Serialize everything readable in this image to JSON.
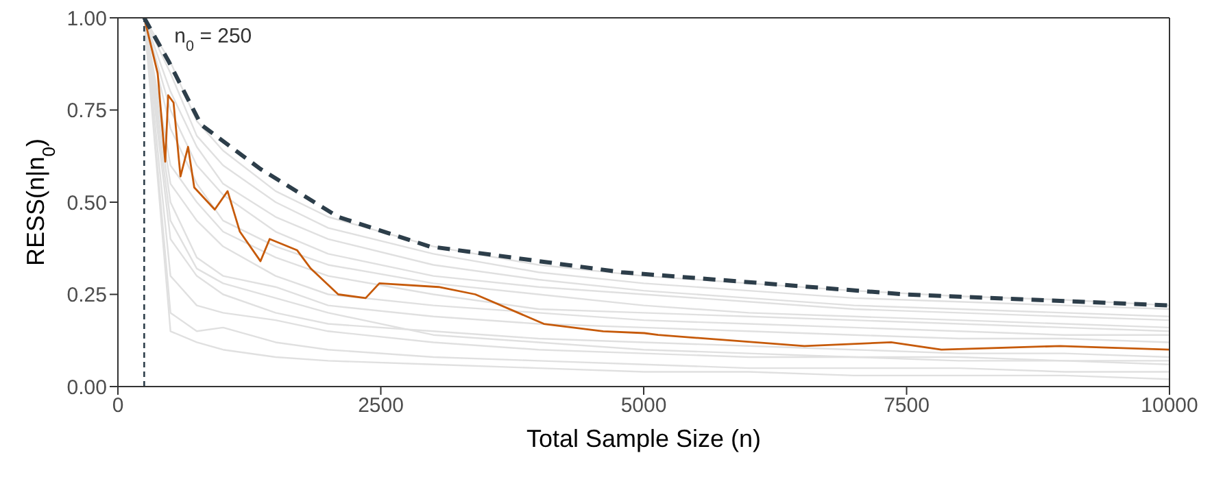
{
  "chart_data": {
    "type": "line",
    "xlabel": "Total Sample Size (n)",
    "ylabel": "RESS(n|n$_{0}$)",
    "xlim": [
      0,
      10000
    ],
    "xticks": [
      0,
      2500,
      5000,
      7500,
      10000
    ],
    "ylim": [
      0,
      1
    ],
    "yticks": [
      {
        "value": 0,
        "label": "0.00"
      },
      {
        "value": 0.25,
        "label": "0.25"
      },
      {
        "value": 0.5,
        "label": "0.50"
      },
      {
        "value": 0.75,
        "label": "0.75"
      },
      {
        "value": 1,
        "label": "1.00"
      }
    ],
    "marker": "none",
    "x": [
      250,
      500,
      750,
      1000,
      1500,
      2000,
      3000,
      4000,
      5000,
      6000,
      7000,
      8000,
      9000,
      10000
    ],
    "series": [
      {
        "color": "#e0e0e0",
        "values": [
          1,
          0.88,
          0.72,
          0.64,
          0.53,
          0.46,
          0.38,
          0.33,
          0.3,
          0.28,
          0.26,
          0.245,
          0.235,
          0.22
        ]
      },
      {
        "color": "#e0e0e0",
        "values": [
          1,
          0.85,
          0.68,
          0.6,
          0.5,
          0.43,
          0.36,
          0.31,
          0.28,
          0.26,
          0.24,
          0.23,
          0.22,
          0.21
        ]
      },
      {
        "color": "#e0e0e0",
        "values": [
          1,
          0.8,
          0.65,
          0.55,
          0.46,
          0.4,
          0.33,
          0.29,
          0.26,
          0.24,
          0.22,
          0.21,
          0.2,
          0.19
        ]
      },
      {
        "color": "#e0e0e0",
        "values": [
          1,
          0.75,
          0.6,
          0.52,
          0.42,
          0.36,
          0.3,
          0.27,
          0.25,
          0.23,
          0.21,
          0.2,
          0.19,
          0.18
        ]
      },
      {
        "color": "#e0e0e0",
        "values": [
          1,
          0.7,
          0.55,
          0.45,
          0.38,
          0.33,
          0.28,
          0.25,
          0.22,
          0.2,
          0.19,
          0.18,
          0.17,
          0.16
        ]
      },
      {
        "color": "#e0e0e0",
        "values": [
          1,
          0.6,
          0.5,
          0.42,
          0.35,
          0.3,
          0.25,
          0.21,
          0.2,
          0.19,
          0.18,
          0.17,
          0.16,
          0.15
        ]
      },
      {
        "color": "#e0e0e0",
        "values": [
          1,
          0.55,
          0.45,
          0.38,
          0.3,
          0.25,
          0.22,
          0.2,
          0.18,
          0.17,
          0.16,
          0.15,
          0.14,
          0.14
        ]
      },
      {
        "color": "#e0e0e0",
        "values": [
          1,
          0.5,
          0.35,
          0.3,
          0.27,
          0.22,
          0.19,
          0.17,
          0.16,
          0.15,
          0.14,
          0.13,
          0.13,
          0.12
        ]
      },
      {
        "color": "#e0e0e0",
        "values": [
          1,
          0.45,
          0.32,
          0.28,
          0.24,
          0.2,
          0.14,
          0.12,
          0.1,
          0.09,
          0.08,
          0.08,
          0.07,
          0.07
        ]
      },
      {
        "color": "#e0e0e0",
        "values": [
          1,
          0.4,
          0.3,
          0.25,
          0.2,
          0.17,
          0.15,
          0.13,
          0.12,
          0.11,
          0.1,
          0.09,
          0.09,
          0.08
        ]
      },
      {
        "color": "#e0e0e0",
        "values": [
          1,
          0.3,
          0.22,
          0.2,
          0.18,
          0.15,
          0.12,
          0.1,
          0.09,
          0.08,
          0.08,
          0.07,
          0.07,
          0.06
        ]
      },
      {
        "color": "#e0e0e0",
        "values": [
          1,
          0.2,
          0.15,
          0.16,
          0.12,
          0.1,
          0.08,
          0.07,
          0.06,
          0.05,
          0.05,
          0.05,
          0.04,
          0.04
        ]
      },
      {
        "color": "#e0e0e0",
        "values": [
          1,
          0.15,
          0.12,
          0.1,
          0.08,
          0.07,
          0.06,
          0.05,
          0.04,
          0.04,
          0.03,
          0.03,
          0.03,
          0.02
        ]
      },
      {
        "color": "#c65a0a",
        "x": [
          250,
          378,
          450,
          478,
          529,
          595,
          667,
          726,
          921,
          1043,
          1160,
          1356,
          1443,
          1703,
          1834,
          2095,
          2356,
          2486,
          3050,
          3399,
          4051,
          4615,
          5006,
          5137,
          6528,
          7353,
          7831,
          8960,
          10000
        ],
        "values": [
          1,
          0.85,
          0.61,
          0.79,
          0.77,
          0.57,
          0.65,
          0.54,
          0.48,
          0.53,
          0.42,
          0.34,
          0.4,
          0.37,
          0.32,
          0.25,
          0.24,
          0.28,
          0.27,
          0.25,
          0.17,
          0.15,
          0.145,
          0.14,
          0.11,
          0.12,
          0.1,
          0.11,
          0.1
        ]
      },
      {
        "color": "#2d3e4a",
        "line_style": "dashed",
        "x": [
          250,
          486,
          791,
          1356,
          2095,
          2964,
          4267,
          4790,
          7485,
          10000
        ],
        "values": [
          1,
          0.88,
          0.71,
          0.59,
          0.46,
          0.38,
          0.33,
          0.31,
          0.25,
          0.22
        ]
      }
    ],
    "ref_lines": [
      {
        "axis": "x",
        "value": 250,
        "label": "n$_{0}$ = 250",
        "color": "#2d3e4a",
        "line_style": "dashed"
      }
    ]
  }
}
